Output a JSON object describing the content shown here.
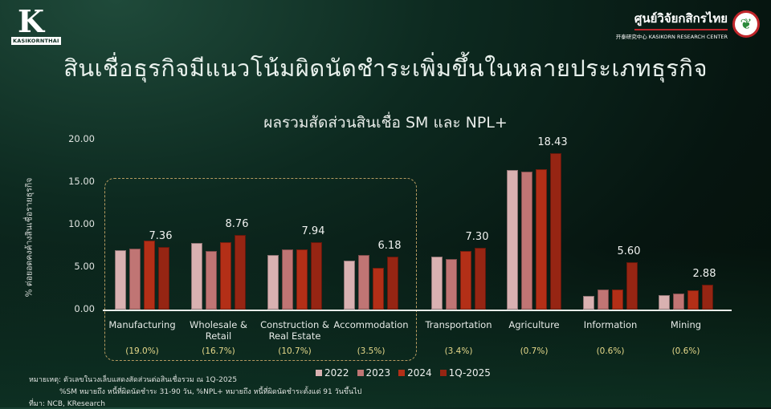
{
  "header": {
    "logo_left_label": "KASIKORNTHAI",
    "logo_left_mark": "K",
    "logo_right_thai": "ศูนย์วิจัยกสิกรไทย",
    "logo_right_en": "开泰研究中心 KASIKORN RESEARCH CENTER",
    "title": "สินเชื่อธุรกิจมีแนวโน้มผิดนัดชำระเพิ่มขึ้นในหลายประเภทธุรกิจ"
  },
  "colors": {
    "2022": "#d9b1b1",
    "2023": "#c07574",
    "2024": "#b32f17",
    "1Q-2025": "#962513",
    "highlight_box": "#b59a60",
    "share_text": "#e6d98a"
  },
  "chart_data": {
    "type": "bar",
    "title": "ผลรวมสัดส่วนสินเชื่อ SM และ NPL+",
    "xlabel": "",
    "ylabel": "% ต่อยอดคงค้างสินเชื่อรายธุรกิจ",
    "ylim": [
      0,
      20
    ],
    "yticks": [
      "0.00",
      "5.00",
      "10.00",
      "15.00",
      "20.00"
    ],
    "grid": false,
    "legend_position": "bottom",
    "categories": [
      "Manufacturing",
      "Wholesale & Retail",
      "Construction & Real Estate",
      "Accommodation",
      "Transportation",
      "Agriculture",
      "Information",
      "Mining"
    ],
    "category_lines": [
      [
        "Manufacturing"
      ],
      [
        "Wholesale &",
        "Retail"
      ],
      [
        "Construction &",
        "Real Estate"
      ],
      [
        "Accommodation"
      ],
      [
        "Transportation"
      ],
      [
        "Agriculture"
      ],
      [
        "Information"
      ],
      [
        "Mining"
      ]
    ],
    "loan_share_labels": [
      "(19.0%)",
      "(16.7%)",
      "(10.7%)",
      "(3.5%)",
      "(3.4%)",
      "(0.7%)",
      "(0.6%)",
      "(0.6%)"
    ],
    "series": [
      {
        "name": "2022",
        "values": [
          7.0,
          7.8,
          6.4,
          5.8,
          6.2,
          16.4,
          1.6,
          1.7
        ]
      },
      {
        "name": "2023",
        "values": [
          7.2,
          6.9,
          7.1,
          6.4,
          5.9,
          16.2,
          2.4,
          1.9
        ]
      },
      {
        "name": "2024",
        "values": [
          8.1,
          7.9,
          7.1,
          4.9,
          6.9,
          16.5,
          2.4,
          2.3
        ]
      },
      {
        "name": "1Q-2025",
        "values": [
          7.36,
          8.76,
          7.94,
          6.18,
          7.3,
          18.43,
          5.6,
          2.88
        ]
      }
    ],
    "data_labels": [
      "7.36",
      "8.76",
      "7.94",
      "6.18",
      "7.30",
      "18.43",
      "5.60",
      "2.88"
    ],
    "annotations": [
      "Dashed box highlights Manufacturing, Wholesale & Retail, Construction & Real Estate, Accommodation"
    ]
  },
  "legend": [
    "2022",
    "2023",
    "2024",
    "1Q-2025"
  ],
  "footnotes": {
    "note1": "หมายเหตุ: ตัวเลขในวงเล็บแสดงสัดส่วนต่อสินเชื่อรวม ณ 1Q-2025",
    "note2": "%SM หมายถึง หนี้ที่ผิดนัดชำระ 31-90 วัน, %NPL+ หมายถึง หนี้ที่ผิดนัดชำระตั้งแต่ 91 วันขึ้นไป",
    "source": "ที่มา: NCB, KResearch"
  }
}
